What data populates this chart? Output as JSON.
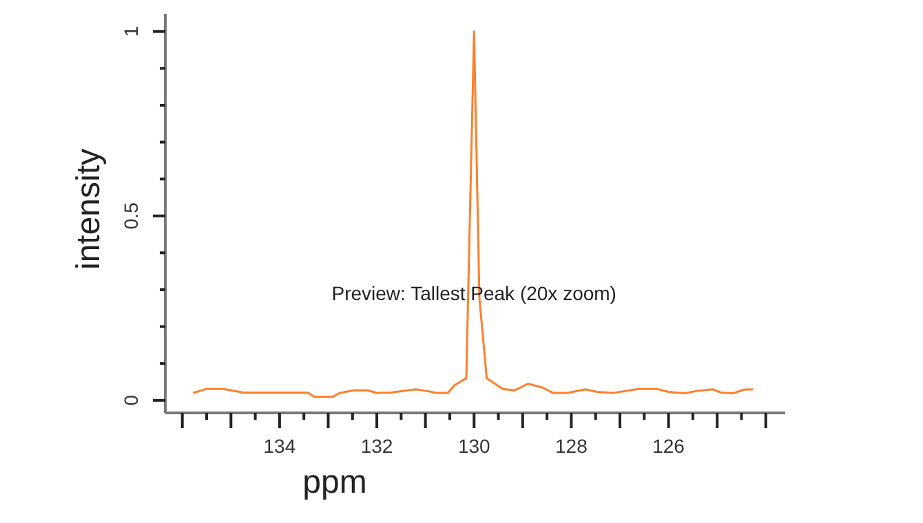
{
  "chart_data": {
    "type": "line",
    "xlabel": "ppm",
    "ylabel": "intensity",
    "annotations": [
      "Preview: Tallest Peak (20x zoom)"
    ],
    "xlim": [
      136.35,
      123.6
    ],
    "xticks": [
      {
        "value": 136,
        "label": null
      },
      {
        "value": 135.5,
        "label": null
      },
      {
        "value": 135,
        "label": null
      },
      {
        "value": 134.5,
        "label": null
      },
      134,
      {
        "value": 133.5,
        "label": null
      },
      {
        "value": 133,
        "label": null
      },
      {
        "value": 132.5,
        "label": null
      },
      132,
      {
        "value": 131.5,
        "label": null
      },
      {
        "value": 131,
        "label": null
      },
      {
        "value": 130.5,
        "label": null
      },
      130,
      {
        "value": 129.5,
        "label": null
      },
      {
        "value": 129,
        "label": null
      },
      {
        "value": 128.5,
        "label": null
      },
      128,
      {
        "value": 127.5,
        "label": null
      },
      {
        "value": 127,
        "label": null
      },
      {
        "value": 126.5,
        "label": null
      },
      126,
      {
        "value": 125.5,
        "label": null
      },
      {
        "value": 125,
        "label": null
      },
      {
        "value": 124.5,
        "label": null
      },
      {
        "value": 124,
        "label": null
      }
    ],
    "ylim": [
      -0.034,
      1.048
    ],
    "yticks": [
      0,
      {
        "value": 0.1,
        "label": null
      },
      {
        "value": 0.2,
        "label": null
      },
      {
        "value": 0.3,
        "label": null
      },
      {
        "value": 0.4,
        "label": null
      },
      0.5,
      {
        "value": 0.6,
        "label": null
      },
      {
        "value": 0.7,
        "label": null
      },
      {
        "value": 0.8,
        "label": null
      },
      {
        "value": 0.9,
        "label": null
      },
      1
    ],
    "grid": false,
    "marker": "none",
    "line_style": "solid",
    "series": [
      {
        "color": "#ff7f2a",
        "x": [
          135.78,
          135.5,
          135.16,
          134.74,
          133.42,
          133.29,
          132.9,
          132.76,
          132.47,
          132.19,
          132.0,
          131.72,
          131.2,
          130.96,
          130.77,
          130.54,
          130.4,
          130.16,
          130.0,
          129.89,
          129.74,
          129.41,
          129.17,
          128.89,
          128.6,
          128.37,
          128.08,
          127.71,
          127.47,
          127.14,
          126.9,
          126.62,
          126.24,
          126.0,
          125.67,
          125.44,
          125.1,
          124.92,
          124.68,
          124.45,
          124.26
        ],
        "values": [
          0.02,
          0.031,
          0.031,
          0.021,
          0.021,
          0.01,
          0.01,
          0.02,
          0.027,
          0.027,
          0.02,
          0.021,
          0.03,
          0.025,
          0.02,
          0.02,
          0.041,
          0.06,
          1.0,
          0.277,
          0.06,
          0.031,
          0.027,
          0.045,
          0.035,
          0.02,
          0.02,
          0.03,
          0.023,
          0.02,
          0.025,
          0.031,
          0.031,
          0.023,
          0.019,
          0.025,
          0.03,
          0.021,
          0.019,
          0.029,
          0.03
        ]
      }
    ]
  }
}
